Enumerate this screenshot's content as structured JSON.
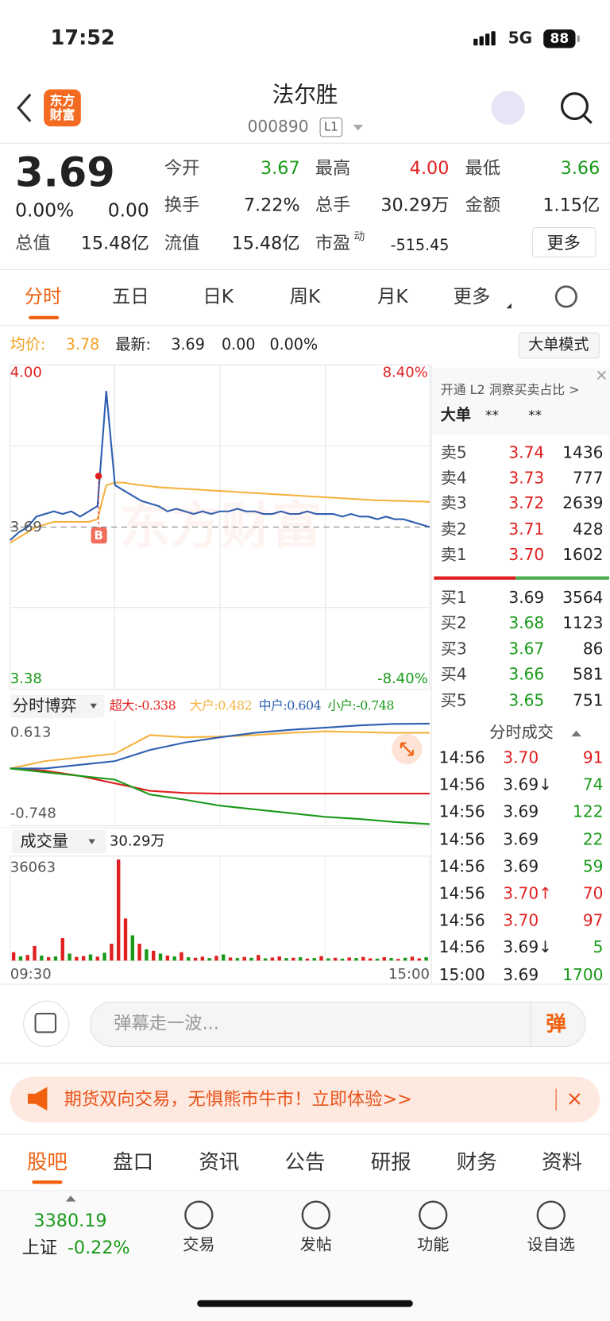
{
  "status_bar": {
    "time": "17:52",
    "network": "5G",
    "battery": "88"
  },
  "header": {
    "logo": "东方财富",
    "name": "法尔胜",
    "code": "000890",
    "level": "L1"
  },
  "quote": {
    "price": "3.69",
    "change_pct": "0.00%",
    "change_abs": "0.00",
    "fields": [
      {
        "label": "今开",
        "value": "3.67"
      },
      {
        "label": "最高",
        "value": "4.00"
      },
      {
        "label": "最低",
        "value": "3.66"
      },
      {
        "label": "换手",
        "value": "7.22%"
      },
      {
        "label": "总手",
        "value": "30.29万"
      },
      {
        "label": "金额",
        "value": "1.15亿"
      },
      {
        "label": "总值",
        "value": "15.48亿"
      },
      {
        "label": "流值",
        "value": "15.48亿"
      },
      {
        "label": "市盈",
        "sup": "动",
        "value": "-515.45"
      }
    ],
    "more": "更多"
  },
  "chart_tabs": [
    "分时",
    "五日",
    "日K",
    "周K",
    "月K",
    "更多"
  ],
  "info_line": {
    "avg_label": "均价:",
    "avg": "3.78",
    "latest_label": "最新:",
    "latest": "3.69",
    "chg": "0.00",
    "pct": "0.00%",
    "mode": "大单模式"
  },
  "price_chart": {
    "y_top": "4.00",
    "y_mid": "3.69",
    "y_bottom": "3.38",
    "pct_top": "8.40%",
    "pct_bottom": "-8.40%",
    "marker": "B",
    "watermark": "东方财富",
    "ylim": [
      3.38,
      4.0
    ],
    "price": [
      3.665,
      3.68,
      3.69,
      3.71,
      3.715,
      3.72,
      3.715,
      3.72,
      3.71,
      3.72,
      3.73,
      3.95,
      3.77,
      3.76,
      3.75,
      3.74,
      3.735,
      3.73,
      3.72,
      3.725,
      3.72,
      3.715,
      3.72,
      3.715,
      3.72,
      3.72,
      3.725,
      3.72,
      3.72,
      3.715,
      3.715,
      3.72,
      3.715,
      3.715,
      3.72,
      3.715,
      3.715,
      3.715,
      3.71,
      3.715,
      3.71,
      3.71,
      3.705,
      3.71,
      3.705,
      3.705,
      3.7,
      3.695,
      3.69
    ],
    "avg": [
      3.66,
      3.67,
      3.68,
      3.69,
      3.695,
      3.7,
      3.7,
      3.7,
      3.7,
      3.7,
      3.705,
      3.77,
      3.775,
      3.775,
      3.772,
      3.77,
      3.768,
      3.766,
      3.765,
      3.764,
      3.763,
      3.762,
      3.761,
      3.76,
      3.759,
      3.758,
      3.757,
      3.756,
      3.755,
      3.754,
      3.753,
      3.752,
      3.751,
      3.75,
      3.749,
      3.748,
      3.747,
      3.746,
      3.745,
      3.744,
      3.743,
      3.742,
      3.741,
      3.741,
      3.74,
      3.74,
      3.739,
      3.739,
      3.738
    ]
  },
  "flow_chart": {
    "label": "分时博弈",
    "ymax_label": "0.613",
    "ymin_label": "-0.748",
    "ylim": [
      -0.748,
      0.613
    ],
    "series": [
      {
        "name": "超大:-0.338",
        "color": "#e02020",
        "values": [
          0,
          -0.03,
          -0.1,
          -0.2,
          -0.3,
          -0.33,
          -0.338,
          -0.338,
          -0.338,
          -0.338,
          -0.338,
          -0.338,
          -0.338
        ]
      },
      {
        "name": "大户:0.482",
        "color": "#f5b342",
        "values": [
          0,
          0.1,
          0.15,
          0.2,
          0.45,
          0.42,
          0.43,
          0.45,
          0.48,
          0.5,
          0.49,
          0.48,
          0.482
        ]
      },
      {
        "name": "中户:0.604",
        "color": "#2d5fb0",
        "values": [
          0,
          0,
          0.05,
          0.1,
          0.25,
          0.35,
          0.42,
          0.48,
          0.52,
          0.55,
          0.58,
          0.6,
          0.604
        ]
      },
      {
        "name": "小户:-0.748",
        "color": "#1a9a1a",
        "values": [
          0,
          -0.05,
          -0.1,
          -0.15,
          -0.35,
          -0.42,
          -0.5,
          -0.55,
          -0.6,
          -0.65,
          -0.68,
          -0.72,
          -0.748
        ]
      }
    ]
  },
  "volume_chart": {
    "label": "成交量",
    "total": "30.29万",
    "max_label": "36063",
    "ylim": [
      0,
      36063
    ],
    "start": "09:30",
    "end": "15:00",
    "values": [
      3000,
      1500,
      2000,
      5200,
      1800,
      1200,
      1500,
      8000,
      2500,
      1300,
      1600,
      2200,
      1400,
      2800,
      6000,
      36063,
      15000,
      9000,
      6000,
      4000,
      3500,
      2500,
      1800,
      1500,
      3000,
      1200,
      1000,
      1400,
      900,
      1700,
      2200,
      1100,
      900,
      1300,
      1000,
      2000,
      800,
      1100,
      1500,
      900,
      1000,
      1200,
      700,
      900,
      1600,
      800,
      1000,
      700,
      1100,
      900,
      1300,
      800,
      700,
      1200,
      900,
      600,
      1000,
      1400,
      800,
      1200
    ],
    "up": [
      true,
      false,
      true,
      true,
      false,
      true,
      false,
      true,
      false,
      true,
      true,
      false,
      true,
      false,
      true,
      true,
      true,
      false,
      true,
      false,
      true,
      false,
      true,
      false,
      true,
      false,
      true,
      true,
      false,
      true,
      false,
      true,
      false,
      true,
      false,
      true,
      false,
      true,
      true,
      false,
      true,
      false,
      true,
      false,
      true,
      false,
      true,
      false,
      true,
      false,
      true,
      true,
      false,
      true,
      false,
      true,
      false,
      true,
      true,
      false
    ]
  },
  "order_book": {
    "promo": "开通 L2 洞察买卖占比 >",
    "big_label": "大单",
    "big_a": "**",
    "big_b": "**",
    "sells": [
      {
        "label": "卖5",
        "price": "3.74",
        "volume": "1436"
      },
      {
        "label": "卖4",
        "price": "3.73",
        "volume": "777"
      },
      {
        "label": "卖3",
        "price": "3.72",
        "volume": "2639"
      },
      {
        "label": "卖2",
        "price": "3.71",
        "volume": "428"
      },
      {
        "label": "卖1",
        "price": "3.70",
        "volume": "1602"
      }
    ],
    "buys": [
      {
        "label": "买1",
        "price": "3.69",
        "volume": "3564"
      },
      {
        "label": "买2",
        "price": "3.68",
        "volume": "1123"
      },
      {
        "label": "买3",
        "price": "3.67",
        "volume": "86"
      },
      {
        "label": "买4",
        "price": "3.66",
        "volume": "581"
      },
      {
        "label": "买5",
        "price": "3.65",
        "volume": "751"
      }
    ]
  },
  "trades": {
    "title": "分时成交",
    "rows": [
      {
        "time": "14:56",
        "price": "3.70",
        "volume": "91",
        "volume_color": "#e02020"
      },
      {
        "time": "14:56",
        "price": "3.69↓",
        "volume": "74",
        "volume_color": "#1a9a1a"
      },
      {
        "time": "14:56",
        "price": "3.69",
        "volume": "122",
        "volume_color": "#1a9a1a"
      },
      {
        "time": "14:56",
        "price": "3.69",
        "volume": "22",
        "volume_color": "#1a9a1a"
      },
      {
        "time": "14:56",
        "price": "3.69",
        "volume": "59",
        "volume_color": "#1a9a1a"
      },
      {
        "time": "14:56",
        "price": "3.70↑",
        "volume": "70",
        "volume_color": "#e02020"
      },
      {
        "time": "14:56",
        "price": "3.70",
        "volume": "97",
        "volume_color": "#e02020"
      },
      {
        "time": "14:56",
        "price": "3.69↓",
        "volume": "5",
        "volume_color": "#1a9a1a"
      },
      {
        "time": "15:00",
        "price": "3.69",
        "volume": "1700",
        "volume_color": "#1a9a1a"
      }
    ]
  },
  "comment": {
    "placeholder": "弹幕走一波...",
    "button": "弹"
  },
  "ad": {
    "text": "期货双向交易，无惧熊市牛市！立即体验>>",
    "close": "×"
  },
  "bottom_tabs": [
    "股吧",
    "盘口",
    "资讯",
    "公告",
    "研报",
    "财务",
    "资料"
  ],
  "nav": {
    "index_value": "3380.19",
    "index_name": "上证",
    "index_change": "-0.22%",
    "items": [
      "交易",
      "发帖",
      "功能",
      "设自选"
    ]
  }
}
